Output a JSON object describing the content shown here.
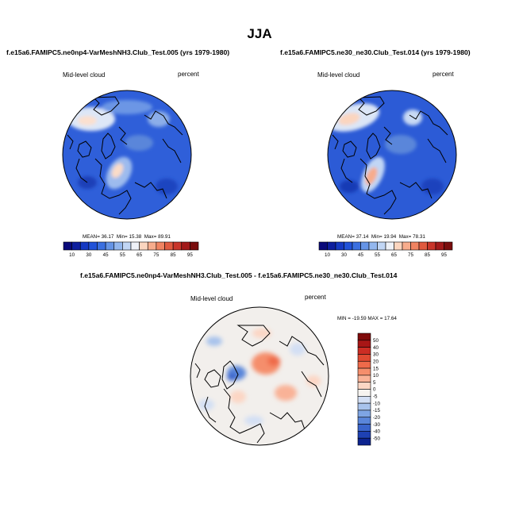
{
  "page": {
    "title": "JJA"
  },
  "panels": {
    "left": {
      "title": "f.e15a6.FAMIPC5.ne0np4-VarMeshNH3.Club_Test.005 (yrs 1979-1980)",
      "variable": "Mid-level cloud",
      "units": "percent",
      "stats": {
        "mean_label": "MEAN=",
        "mean": "36.17",
        "min_label": "Min=",
        "min": "15.38",
        "max_label": "Max=",
        "max": "89.91"
      }
    },
    "right": {
      "title": "f.e15a6.FAMIPC5.ne30_ne30.Club_Test.014 (yrs 1979-1980)",
      "variable": "Mid-level cloud",
      "units": "percent",
      "stats": {
        "mean_label": "MEAN=",
        "mean": "37.14",
        "min_label": "Min=",
        "min": "19.94",
        "max_label": "Max=",
        "max": "78.31"
      }
    },
    "diff": {
      "title": "f.e15a6.FAMIPC5.ne0np4-VarMeshNH3.Club_Test.005 - f.e15a6.FAMIPC5.ne30_ne30.Club_Test.014",
      "variable": "Mid-level cloud",
      "units": "percent",
      "minmax": "MIN = -19.59 MAX =  17.64"
    }
  },
  "chart_data": [
    {
      "type": "heatmap",
      "projection": "north-polar-stereographic",
      "title": "f.e15a6.FAMIPC5.ne0np4-VarMeshNH3.Club_Test.005 (yrs 1979-1980)",
      "variable": "Mid-level cloud",
      "units": "percent",
      "mean": 36.17,
      "min": 15.38,
      "max": 89.91,
      "colorbar": {
        "orientation": "horizontal",
        "levels": [
          10,
          20,
          30,
          40,
          45,
          50,
          55,
          60,
          65,
          70,
          75,
          80,
          85,
          90,
          95
        ],
        "tick_labels": [
          "10",
          "30",
          "45",
          "55",
          "65",
          "75",
          "85",
          "95"
        ],
        "colors": [
          "#0a0a7a",
          "#0d1e9e",
          "#1539c3",
          "#2152d8",
          "#3a6fe0",
          "#6594e6",
          "#93b7ee",
          "#c1d6f5",
          "#eef1f7",
          "#fbd5bf",
          "#f7ac8c",
          "#f08361",
          "#e05a3f",
          "#c8352a",
          "#a21a1a",
          "#7a0d0d"
        ]
      }
    },
    {
      "type": "heatmap",
      "projection": "north-polar-stereographic",
      "title": "f.e15a6.FAMIPC5.ne30_ne30.Club_Test.014 (yrs 1979-1980)",
      "variable": "Mid-level cloud",
      "units": "percent",
      "mean": 37.14,
      "min": 19.94,
      "max": 78.31,
      "colorbar": {
        "orientation": "horizontal",
        "levels": [
          10,
          20,
          30,
          40,
          45,
          50,
          55,
          60,
          65,
          70,
          75,
          80,
          85,
          90,
          95
        ],
        "tick_labels": [
          "10",
          "30",
          "45",
          "55",
          "65",
          "75",
          "85",
          "95"
        ],
        "colors": [
          "#0a0a7a",
          "#0d1e9e",
          "#1539c3",
          "#2152d8",
          "#3a6fe0",
          "#6594e6",
          "#93b7ee",
          "#c1d6f5",
          "#eef1f7",
          "#fbd5bf",
          "#f7ac8c",
          "#f08361",
          "#e05a3f",
          "#c8352a",
          "#a21a1a",
          "#7a0d0d"
        ]
      }
    },
    {
      "type": "heatmap",
      "projection": "north-polar-stereographic",
      "title": "f.e15a6.FAMIPC5.ne0np4-VarMeshNH3.Club_Test.005 - f.e15a6.FAMIPC5.ne30_ne30.Club_Test.014",
      "variable": "Mid-level cloud",
      "units": "percent",
      "min": -19.59,
      "max": 17.64,
      "colorbar": {
        "orientation": "vertical",
        "tick_labels": [
          "50",
          "40",
          "30",
          "20",
          "15",
          "10",
          "5",
          "0",
          "-5",
          "-10",
          "-15",
          "-20",
          "-30",
          "-40",
          "-50"
        ],
        "colors": [
          "#7f0a0a",
          "#a81616",
          "#cc2d24",
          "#e04a32",
          "#ef6a4a",
          "#f58e6c",
          "#f9b297",
          "#fcd6c4",
          "#f6f3ef",
          "#d3dff4",
          "#a8c3ec",
          "#7ea5e4",
          "#5a86da",
          "#3a65cc",
          "#1e41b3",
          "#0c238f"
        ]
      }
    }
  ]
}
